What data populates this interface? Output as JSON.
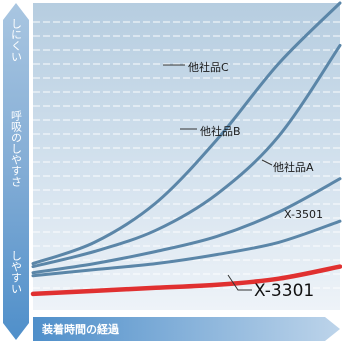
{
  "chart_data": {
    "type": "line",
    "title": "",
    "y_axis": {
      "top_label": "しにくい",
      "label": "呼吸のしやすさ",
      "bottom_label": "しやすい"
    },
    "x_axis": {
      "label": "装着時間の経過"
    },
    "xlim": [
      0,
      1
    ],
    "ylim": [
      0,
      1
    ],
    "grid": true,
    "series": [
      {
        "name": "他社品C",
        "color": "#5b86a8",
        "x": [
          0,
          0.2,
          0.4,
          0.6,
          0.8,
          1
        ],
        "y": [
          0.14,
          0.21,
          0.34,
          0.55,
          0.8,
          1.0
        ]
      },
      {
        "name": "他社品B",
        "color": "#5b86a8",
        "x": [
          0,
          0.2,
          0.4,
          0.6,
          0.8,
          1
        ],
        "y": [
          0.13,
          0.18,
          0.25,
          0.37,
          0.56,
          0.86
        ]
      },
      {
        "name": "他社品A",
        "color": "#5b86a8",
        "x": [
          0,
          0.2,
          0.4,
          0.6,
          0.8,
          1
        ],
        "y": [
          0.11,
          0.14,
          0.18,
          0.23,
          0.31,
          0.42
        ]
      },
      {
        "name": "X-3501",
        "color": "#5b86a8",
        "x": [
          0,
          0.2,
          0.4,
          0.6,
          0.8,
          1
        ],
        "y": [
          0.1,
          0.12,
          0.14,
          0.17,
          0.21,
          0.28
        ]
      },
      {
        "name": "X-3301",
        "color": "#e03030",
        "x": [
          0,
          0.2,
          0.4,
          0.6,
          0.8,
          1
        ],
        "y": [
          0.04,
          0.05,
          0.06,
          0.07,
          0.09,
          0.13
        ]
      }
    ]
  }
}
